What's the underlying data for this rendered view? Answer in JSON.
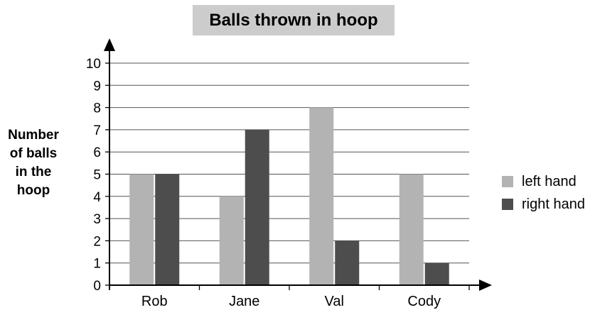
{
  "chart_data": {
    "type": "bar",
    "title": "Balls thrown in hoop",
    "ylabel_lines": [
      "Number",
      "of balls",
      "in the",
      "hoop"
    ],
    "xlabel": "",
    "categories": [
      "Rob",
      "Jane",
      "Val",
      "Cody"
    ],
    "series": [
      {
        "name": "left hand",
        "color": "#b3b3b3",
        "values": [
          5,
          4,
          8,
          5
        ]
      },
      {
        "name": "right hand",
        "color": "#4d4d4d",
        "values": [
          5,
          7,
          2,
          1
        ]
      }
    ],
    "ylim": [
      0,
      10
    ],
    "yticks": [
      0,
      1,
      2,
      3,
      4,
      5,
      6,
      7,
      8,
      9,
      10
    ],
    "grid": true,
    "legend_position": "right"
  }
}
